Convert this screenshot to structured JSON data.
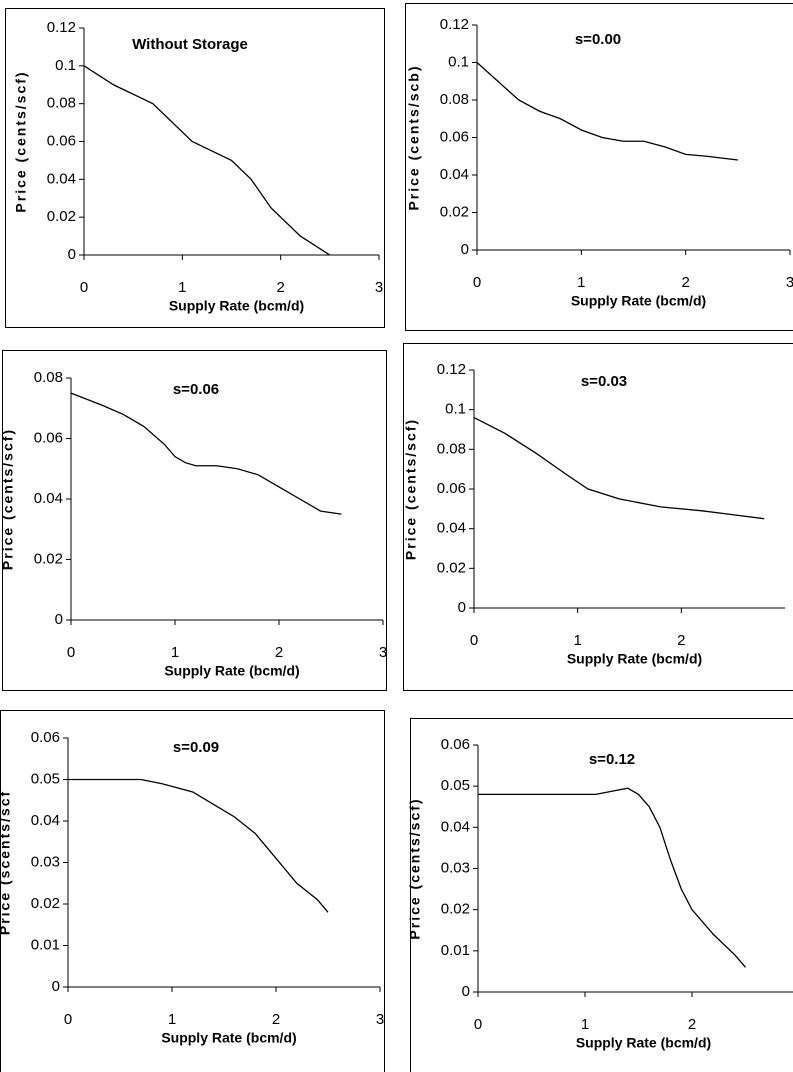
{
  "chart_data": [
    {
      "type": "line",
      "title": "Without Storage",
      "x_label": "Supply Rate (bcm/d)",
      "y_label": "Price (cents/scf)",
      "x": [
        0,
        0.3,
        0.5,
        0.7,
        1.0,
        1.1,
        1.3,
        1.5,
        1.7,
        1.9,
        2.2,
        2.5
      ],
      "series": [
        {
          "color": "#000000",
          "values": [
            0.1,
            0.09,
            0.085,
            0.08,
            0.065,
            0.06,
            0.055,
            0.05,
            0.04,
            0.025,
            0.01,
            0
          ]
        }
      ],
      "xlim": [
        0,
        3
      ],
      "xticks": [
        0,
        1,
        2,
        3
      ],
      "ylim": [
        0,
        0.12
      ],
      "yticks": [
        0,
        0.02,
        0.04,
        0.06,
        0.08,
        0.1,
        0.12
      ]
    },
    {
      "type": "line",
      "title": "s=0.00",
      "x_label": "Supply Rate (bcm/d)",
      "y_label": "Price (cents/scb)",
      "x": [
        0,
        0.2,
        0.4,
        0.6,
        0.8,
        1.0,
        1.2,
        1.4,
        1.6,
        1.8,
        2.0,
        2.2,
        2.5
      ],
      "series": [
        {
          "color": "#000000",
          "values": [
            0.1,
            0.09,
            0.08,
            0.074,
            0.07,
            0.064,
            0.06,
            0.058,
            0.058,
            0.055,
            0.051,
            0.05,
            0.048
          ]
        }
      ],
      "xlim": [
        0,
        3
      ],
      "xticks": [
        0,
        1,
        2,
        3
      ],
      "ylim": [
        0,
        0.12
      ],
      "yticks": [
        0,
        0.02,
        0.04,
        0.06,
        0.08,
        0.1,
        0.12
      ]
    },
    {
      "type": "line",
      "title": "s=0.06",
      "x_label": "Supply Rate (bcm/d)",
      "y_label": "Price (cents/scf)",
      "x": [
        0,
        0.3,
        0.5,
        0.7,
        0.9,
        1.0,
        1.1,
        1.2,
        1.4,
        1.6,
        1.8,
        2.0,
        2.2,
        2.4,
        2.6
      ],
      "series": [
        {
          "color": "#000000",
          "values": [
            0.075,
            0.071,
            0.068,
            0.064,
            0.058,
            0.054,
            0.052,
            0.051,
            0.051,
            0.05,
            0.048,
            0.044,
            0.04,
            0.036,
            0.035
          ]
        }
      ],
      "xlim": [
        0,
        3
      ],
      "xticks": [
        0,
        1,
        2,
        3
      ],
      "ylim": [
        0,
        0.08
      ],
      "yticks": [
        0,
        0.02,
        0.04,
        0.06,
        0.08
      ]
    },
    {
      "type": "line",
      "title": "s=0.03",
      "x_label": "Supply Rate (bcm/d)",
      "y_label": "Price (cents/scf)",
      "x": [
        0,
        0.3,
        0.6,
        0.9,
        1.1,
        1.4,
        1.8,
        2.2,
        2.5,
        2.8
      ],
      "series": [
        {
          "color": "#000000",
          "values": [
            0.096,
            0.088,
            0.078,
            0.067,
            0.06,
            0.055,
            0.051,
            0.049,
            0.047,
            0.045
          ]
        }
      ],
      "xlim": [
        0,
        3
      ],
      "xticks": [
        0,
        1,
        2
      ],
      "ylim": [
        0,
        0.12
      ],
      "yticks": [
        0,
        0.02,
        0.04,
        0.06,
        0.08,
        0.1,
        0.12
      ]
    },
    {
      "type": "line",
      "title": "s=0.09",
      "x_label": "Supply Rate (bcm/d)",
      "y_label": "Price (scents/scf",
      "x": [
        0,
        0.3,
        0.7,
        0.9,
        1.2,
        1.4,
        1.6,
        1.8,
        2.0,
        2.2,
        2.4,
        2.5
      ],
      "series": [
        {
          "color": "#000000",
          "values": [
            0.05,
            0.05,
            0.05,
            0.049,
            0.047,
            0.044,
            0.041,
            0.037,
            0.031,
            0.025,
            0.021,
            0.018
          ]
        }
      ],
      "xlim": [
        0,
        3
      ],
      "xticks": [
        0,
        1,
        2,
        3
      ],
      "ylim": [
        0,
        0.06
      ],
      "yticks": [
        0,
        0.01,
        0.02,
        0.03,
        0.04,
        0.05,
        0.06
      ]
    },
    {
      "type": "line",
      "title": "s=0.12",
      "x_label": "Supply Rate (bcm/d)",
      "y_label": "Price (cents/scf)",
      "x": [
        0,
        0.5,
        1.1,
        1.3,
        1.4,
        1.5,
        1.6,
        1.7,
        1.8,
        1.9,
        2.0,
        2.2,
        2.4,
        2.5
      ],
      "series": [
        {
          "color": "#000000",
          "values": [
            0.048,
            0.048,
            0.048,
            0.049,
            0.0495,
            0.048,
            0.045,
            0.04,
            0.032,
            0.025,
            0.02,
            0.014,
            0.009,
            0.006
          ]
        }
      ],
      "xlim": [
        0,
        3
      ],
      "xticks": [
        0,
        1,
        2
      ],
      "ylim": [
        0,
        0.06
      ],
      "yticks": [
        0,
        0.01,
        0.02,
        0.03,
        0.04,
        0.05,
        0.06
      ]
    }
  ]
}
